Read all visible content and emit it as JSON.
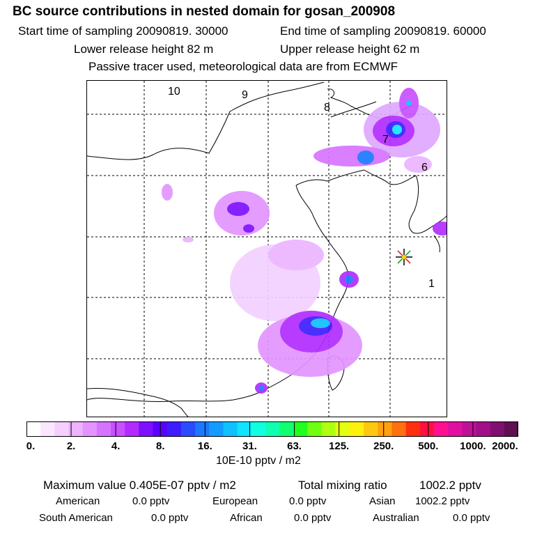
{
  "header": {
    "title": "BC  source contributions in nested domain for gosan_200908",
    "start_time": "Start time of sampling 20090819. 30000",
    "end_time": "End time of sampling 20090819. 60000",
    "lower_height": "Lower release height   82 m",
    "upper_height": "Upper release height   62 m",
    "tracer_note": "Passive tracer used, meteorological data are from ECMWF"
  },
  "map": {
    "region_labels": [
      "10",
      "9",
      "8",
      "7",
      "6",
      "1"
    ],
    "receptor_marker": "receptor-star-icon"
  },
  "colorbar": {
    "colors": [
      "#ffffff",
      "#fbe8ff",
      "#f5d0ff",
      "#ecb4ff",
      "#e394ff",
      "#d674ff",
      "#c850ff",
      "#b22cff",
      "#7c10ff",
      "#5a00ff",
      "#3f1cff",
      "#2a4cff",
      "#1c78ff",
      "#129cff",
      "#10c0ff",
      "#10e4ff",
      "#10ffe0",
      "#10ffb0",
      "#10ff70",
      "#20ff20",
      "#70ff10",
      "#b0ff10",
      "#e4ff10",
      "#fff010",
      "#ffc810",
      "#ffa010",
      "#ff7010",
      "#ff3010",
      "#ff1040",
      "#ff1090",
      "#e010a0",
      "#c01098",
      "#a01088",
      "#801070",
      "#601050"
    ],
    "tick_labels": [
      "0.",
      "2.",
      "4.",
      "8.",
      "16.",
      "31.",
      "63.",
      "125.",
      "250.",
      "500.",
      "1000.",
      "2000."
    ],
    "unit": "10E-10 pptv / m2"
  },
  "stats": {
    "max_label": "Maximum value  0.405E-07 pptv / m2",
    "total_label": "Total mixing ratio",
    "total_value": "1002.2 pptv",
    "american_label": "American",
    "american_value": "0.0 pptv",
    "european_label": "European",
    "european_value": "0.0 pptv",
    "asian_label": "Asian",
    "asian_value": "1002.2 pptv",
    "south_american_label": "South American",
    "south_american_value": "0.0 pptv",
    "african_label": "African",
    "african_value": "0.0 pptv",
    "australian_label": "Australian",
    "australian_value": "0.0 pptv"
  }
}
